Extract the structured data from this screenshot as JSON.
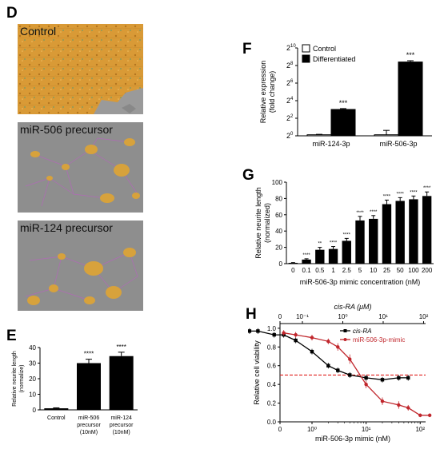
{
  "panel_D": {
    "letter": "D",
    "images": [
      {
        "label": "Control"
      },
      {
        "label": "miR-506 precursor"
      },
      {
        "label": "miR-124 precursor"
      }
    ]
  },
  "panel_E": {
    "letter": "E"
  },
  "panel_F": {
    "letter": "F"
  },
  "panel_G": {
    "letter": "G"
  },
  "panel_H": {
    "letter": "H"
  },
  "chart_data": [
    {
      "id": "E",
      "type": "bar",
      "ylabel": "Relative neurite length (normalize)",
      "ylim": [
        0,
        40
      ],
      "yticks": [
        0,
        10,
        20,
        30,
        40
      ],
      "categories": [
        "Control",
        "miR-506 precursor (10nM)",
        "miR-124 precursor (10nM)"
      ],
      "values": [
        1,
        30,
        34.5
      ],
      "errors": [
        0.3,
        2.5,
        2.5
      ],
      "significance": [
        "",
        "****",
        "****"
      ]
    },
    {
      "id": "F",
      "type": "bar",
      "ylabel": "Relative expression (fold change)",
      "yscale": "log2",
      "ylim_exp": [
        0,
        10
      ],
      "yticks_exp": [
        0,
        2,
        4,
        6,
        8,
        10
      ],
      "yticks_base": "2",
      "categories": [
        "miR-124-3p",
        "miR-506-3p"
      ],
      "legend": [
        "Control",
        "Differentiated"
      ],
      "legend_position": "top-left",
      "series": [
        {
          "name": "Control",
          "values_exp": [
            0,
            0
          ],
          "errors_exp": [
            0.05,
            0.5
          ],
          "color": "#ffffff"
        },
        {
          "name": "Differentiated",
          "values_exp": [
            3,
            8.4
          ],
          "errors_exp": [
            0.1,
            0.15
          ],
          "color": "#000000"
        }
      ],
      "significance": [
        "***",
        "***"
      ]
    },
    {
      "id": "G",
      "type": "bar",
      "ylabel": "Relative neurite length (normalized)",
      "xlabel": "miR-506-3p mimic concentration (nM)",
      "ylim": [
        0,
        100
      ],
      "yticks": [
        0,
        20,
        40,
        60,
        80,
        100
      ],
      "categories": [
        "0",
        "0.1",
        "0.5",
        "1",
        "2.5",
        "5",
        "10",
        "25",
        "50",
        "100",
        "200"
      ],
      "values": [
        1,
        5,
        17,
        18,
        28,
        53,
        55,
        73,
        77,
        79,
        83
      ],
      "errors": [
        0.3,
        1,
        3,
        3,
        3,
        5,
        4,
        5,
        4,
        4,
        5
      ],
      "significance": [
        "",
        "****",
        "**",
        "****",
        "****",
        "****",
        "****",
        "****",
        "****",
        "****",
        "****"
      ]
    },
    {
      "id": "H",
      "type": "scatter",
      "ylabel": "Relative cell viability",
      "xlabel": "miR-506-3p mimic (nM)",
      "x2label": "cis-RA (μM)",
      "xscale": "log",
      "ylim": [
        0,
        1.05
      ],
      "yticks": [
        "0.0",
        "0.2",
        "0.4",
        "0.6",
        "0.8",
        "1.0"
      ],
      "xticks": [
        "0",
        "10⁰",
        "10¹",
        "10²"
      ],
      "x2ticks": [
        "0",
        "10⁻¹",
        "10⁰",
        "10¹",
        "10²"
      ],
      "legend": [
        "cis-RA",
        "miR-506-3p-mimic"
      ],
      "legend_position": "top-right",
      "reference_line": 0.5,
      "series": [
        {
          "name": "cis-RA",
          "color": "#000000",
          "x": [
            0.07,
            0.1,
            0.2,
            0.3,
            0.5,
            1,
            2,
            3,
            5,
            10,
            20,
            40,
            60
          ],
          "y": [
            0.97,
            0.97,
            0.93,
            0.93,
            0.87,
            0.75,
            0.6,
            0.55,
            0.5,
            0.47,
            0.45,
            0.47,
            0.47
          ],
          "err": [
            0.03,
            0.03,
            0.03,
            0.03,
            0.03,
            0.03,
            0.03,
            0.03,
            0.03,
            0.03,
            0.03,
            0.03,
            0.03
          ]
        },
        {
          "name": "miR-506-3p-mimic",
          "color": "#c0262c",
          "x": [
            0.3,
            0.5,
            1,
            2,
            3,
            5,
            10,
            20,
            40,
            60,
            100,
            150
          ],
          "y": [
            0.95,
            0.93,
            0.9,
            0.86,
            0.8,
            0.67,
            0.4,
            0.22,
            0.18,
            0.15,
            0.07,
            0.07
          ],
          "err": [
            0.03,
            0.03,
            0.03,
            0.03,
            0.04,
            0.05,
            0.04,
            0.04,
            0.04,
            0.03,
            0.02,
            0.02
          ]
        }
      ]
    }
  ]
}
